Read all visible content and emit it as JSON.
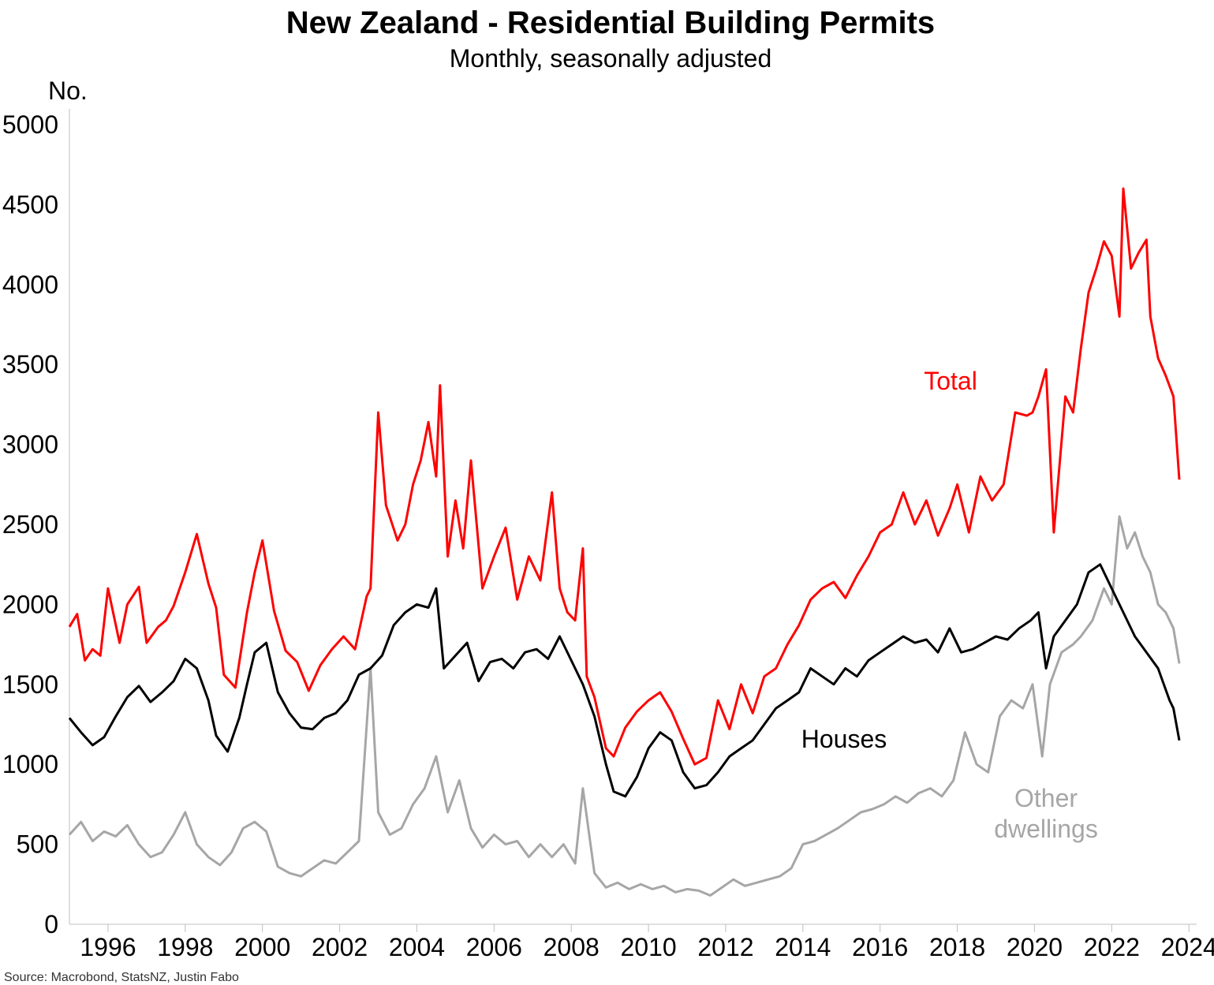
{
  "chart_data": {
    "type": "line",
    "title": "New Zealand - Residential Building Permits",
    "subtitle": "Monthly, seasonally adjusted",
    "ylabel": "No.",
    "ylim": [
      0,
      5000
    ],
    "yticks": [
      0,
      500,
      1000,
      1500,
      2000,
      2500,
      3000,
      3500,
      4000,
      4500,
      5000
    ],
    "xlim": [
      1995.0,
      2024.2
    ],
    "xticks": [
      1996,
      1998,
      2000,
      2002,
      2004,
      2006,
      2008,
      2010,
      2012,
      2014,
      2016,
      2018,
      2020,
      2022,
      2024
    ],
    "source": "Source: Macrobond, StatsNZ, Justin Fabo",
    "series": [
      {
        "name": "Total",
        "label_lines": [
          "Total"
        ],
        "color": "#ff0000",
        "x": [
          1995.0,
          1995.2,
          1995.4,
          1995.6,
          1995.8,
          1996.0,
          1996.3,
          1996.5,
          1996.8,
          1997.0,
          1997.3,
          1997.5,
          1997.7,
          1998.0,
          1998.3,
          1998.6,
          1998.8,
          1999.0,
          1999.3,
          1999.6,
          1999.8,
          2000.0,
          2000.3,
          2000.6,
          2000.9,
          2001.2,
          2001.5,
          2001.8,
          2002.1,
          2002.4,
          2002.7,
          2002.8,
          2003.0,
          2003.2,
          2003.5,
          2003.7,
          2003.9,
          2004.1,
          2004.3,
          2004.5,
          2004.6,
          2004.8,
          2005.0,
          2005.2,
          2005.4,
          2005.7,
          2006.0,
          2006.3,
          2006.6,
          2006.9,
          2007.2,
          2007.5,
          2007.7,
          2007.9,
          2008.1,
          2008.3,
          2008.4,
          2008.6,
          2008.9,
          2009.1,
          2009.4,
          2009.7,
          2010.0,
          2010.3,
          2010.6,
          2010.9,
          2011.2,
          2011.5,
          2011.8,
          2012.1,
          2012.4,
          2012.7,
          2013.0,
          2013.3,
          2013.6,
          2013.9,
          2014.2,
          2014.5,
          2014.8,
          2015.1,
          2015.4,
          2015.7,
          2016.0,
          2016.3,
          2016.6,
          2016.9,
          2017.2,
          2017.5,
          2017.8,
          2018.0,
          2018.3,
          2018.6,
          2018.9,
          2019.2,
          2019.5,
          2019.8,
          2019.95,
          2020.1,
          2020.3,
          2020.5,
          2020.8,
          2021.0,
          2021.2,
          2021.4,
          2021.6,
          2021.8,
          2022.0,
          2022.2,
          2022.3,
          2022.5,
          2022.7,
          2022.9,
          2023.0,
          2023.2,
          2023.4,
          2023.6,
          2023.75
        ],
        "values": [
          1860,
          1940,
          1650,
          1720,
          1680,
          2100,
          1760,
          2000,
          2110,
          1760,
          1860,
          1900,
          1990,
          2200,
          2440,
          2130,
          1980,
          1560,
          1480,
          1950,
          2200,
          2400,
          1960,
          1710,
          1640,
          1460,
          1620,
          1720,
          1800,
          1720,
          2050,
          2100,
          3200,
          2620,
          2400,
          2500,
          2750,
          2900,
          3140,
          2800,
          3370,
          2300,
          2650,
          2350,
          2900,
          2100,
          2300,
          2480,
          2030,
          2300,
          2150,
          2700,
          2100,
          1950,
          1900,
          2350,
          1550,
          1420,
          1100,
          1050,
          1230,
          1330,
          1400,
          1450,
          1330,
          1160,
          1000,
          1040,
          1400,
          1220,
          1500,
          1320,
          1550,
          1600,
          1750,
          1870,
          2030,
          2100,
          2140,
          2040,
          2180,
          2300,
          2450,
          2500,
          2700,
          2500,
          2650,
          2430,
          2600,
          2750,
          2450,
          2800,
          2650,
          2750,
          3200,
          3180,
          3200,
          3300,
          3470,
          2450,
          3300,
          3200,
          3600,
          3950,
          4100,
          4270,
          4180,
          3800,
          4600,
          4100,
          4200,
          4280,
          3800,
          3540,
          3430,
          3300,
          2780
        ]
      },
      {
        "name": "Houses",
        "label_lines": [
          "Houses"
        ],
        "color": "#000000",
        "x": [
          1995.0,
          1995.3,
          1995.6,
          1995.9,
          1996.2,
          1996.5,
          1996.8,
          1997.1,
          1997.4,
          1997.7,
          1998.0,
          1998.3,
          1998.6,
          1998.8,
          1999.1,
          1999.4,
          1999.6,
          1999.8,
          2000.1,
          2000.4,
          2000.7,
          2001.0,
          2001.3,
          2001.6,
          2001.9,
          2002.2,
          2002.5,
          2002.8,
          2003.1,
          2003.4,
          2003.7,
          2004.0,
          2004.3,
          2004.5,
          2004.7,
          2005.0,
          2005.3,
          2005.6,
          2005.9,
          2006.2,
          2006.5,
          2006.8,
          2007.1,
          2007.4,
          2007.7,
          2008.0,
          2008.3,
          2008.6,
          2008.9,
          2009.1,
          2009.4,
          2009.7,
          2010.0,
          2010.3,
          2010.6,
          2010.9,
          2011.2,
          2011.5,
          2011.8,
          2012.1,
          2012.4,
          2012.7,
          2013.0,
          2013.3,
          2013.6,
          2013.9,
          2014.2,
          2014.5,
          2014.8,
          2015.1,
          2015.4,
          2015.7,
          2016.0,
          2016.3,
          2016.6,
          2016.9,
          2017.2,
          2017.5,
          2017.8,
          2018.1,
          2018.4,
          2018.7,
          2019.0,
          2019.3,
          2019.6,
          2019.9,
          2020.1,
          2020.3,
          2020.5,
          2020.8,
          2021.1,
          2021.4,
          2021.7,
          2022.0,
          2022.3,
          2022.6,
          2022.9,
          2023.2,
          2023.5,
          2023.6,
          2023.75
        ],
        "values": [
          1290,
          1200,
          1120,
          1170,
          1300,
          1420,
          1490,
          1390,
          1450,
          1520,
          1660,
          1600,
          1400,
          1180,
          1080,
          1290,
          1500,
          1700,
          1760,
          1450,
          1320,
          1230,
          1220,
          1290,
          1320,
          1400,
          1560,
          1600,
          1680,
          1870,
          1950,
          2000,
          1980,
          2100,
          1600,
          1680,
          1760,
          1520,
          1640,
          1660,
          1600,
          1700,
          1720,
          1660,
          1800,
          1650,
          1500,
          1300,
          1000,
          830,
          800,
          920,
          1100,
          1200,
          1150,
          950,
          850,
          870,
          950,
          1050,
          1100,
          1150,
          1250,
          1350,
          1400,
          1450,
          1600,
          1550,
          1500,
          1600,
          1550,
          1650,
          1700,
          1750,
          1800,
          1760,
          1780,
          1700,
          1850,
          1700,
          1720,
          1760,
          1800,
          1780,
          1850,
          1900,
          1950,
          1600,
          1800,
          1900,
          2000,
          2200,
          2250,
          2100,
          1950,
          1800,
          1700,
          1600,
          1400,
          1350,
          1150
        ]
      },
      {
        "name": "Other dwellings",
        "label_lines": [
          "Other",
          "dwellings"
        ],
        "color": "#a6a6a6",
        "x": [
          1995.0,
          1995.3,
          1995.6,
          1995.9,
          1996.2,
          1996.5,
          1996.8,
          1997.1,
          1997.4,
          1997.7,
          1998.0,
          1998.3,
          1998.6,
          1998.9,
          1999.2,
          1999.5,
          1999.8,
          2000.1,
          2000.4,
          2000.7,
          2001.0,
          2001.3,
          2001.6,
          2001.9,
          2002.2,
          2002.5,
          2002.8,
          2003.0,
          2003.3,
          2003.6,
          2003.9,
          2004.2,
          2004.5,
          2004.8,
          2005.1,
          2005.4,
          2005.7,
          2006.0,
          2006.3,
          2006.6,
          2006.9,
          2007.2,
          2007.5,
          2007.8,
          2008.1,
          2008.3,
          2008.6,
          2008.9,
          2009.2,
          2009.5,
          2009.8,
          2010.1,
          2010.4,
          2010.7,
          2011.0,
          2011.3,
          2011.6,
          2011.9,
          2012.2,
          2012.5,
          2012.8,
          2013.1,
          2013.4,
          2013.7,
          2014.0,
          2014.3,
          2014.6,
          2014.9,
          2015.2,
          2015.5,
          2015.8,
          2016.1,
          2016.4,
          2016.7,
          2017.0,
          2017.3,
          2017.6,
          2017.9,
          2018.2,
          2018.5,
          2018.8,
          2019.1,
          2019.4,
          2019.7,
          2019.95,
          2020.2,
          2020.4,
          2020.7,
          2021.0,
          2021.2,
          2021.5,
          2021.8,
          2022.0,
          2022.2,
          2022.4,
          2022.6,
          2022.8,
          2023.0,
          2023.2,
          2023.4,
          2023.6,
          2023.75
        ],
        "values": [
          560,
          640,
          520,
          580,
          550,
          620,
          500,
          420,
          450,
          560,
          700,
          500,
          420,
          370,
          450,
          600,
          640,
          580,
          360,
          320,
          300,
          350,
          400,
          380,
          450,
          520,
          1600,
          700,
          560,
          600,
          750,
          850,
          1050,
          700,
          900,
          600,
          480,
          560,
          500,
          520,
          420,
          500,
          420,
          500,
          380,
          850,
          320,
          230,
          260,
          220,
          250,
          220,
          240,
          200,
          220,
          210,
          180,
          230,
          280,
          240,
          260,
          280,
          300,
          350,
          500,
          520,
          560,
          600,
          650,
          700,
          720,
          750,
          800,
          760,
          820,
          850,
          800,
          900,
          1200,
          1000,
          950,
          1300,
          1400,
          1350,
          1500,
          1050,
          1500,
          1700,
          1750,
          1800,
          1900,
          2100,
          2000,
          2550,
          2350,
          2450,
          2300,
          2200,
          2000,
          1950,
          1850,
          1630
        ]
      }
    ]
  }
}
